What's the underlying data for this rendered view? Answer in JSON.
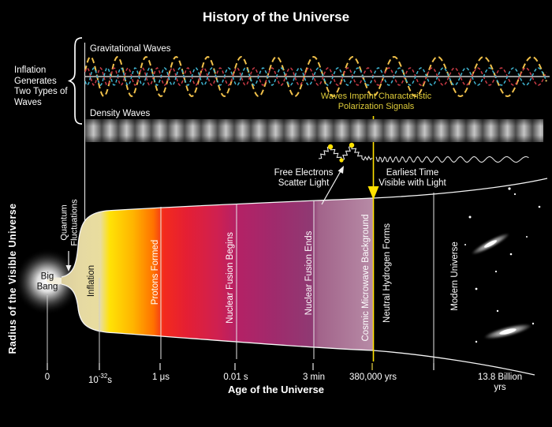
{
  "title": "History of the Universe",
  "wave_panel": {
    "intro_note": "Inflation\nGenerates\nTwo Types of\nWaves",
    "gravitational_label": "Gravitational Waves",
    "density_label": "Density Waves",
    "polarization_note": "Waves Imprint Characteristic\nPolarization Signals"
  },
  "annotations": {
    "free_electrons": "Free Electrons\nScatter Light",
    "earliest_time": "Earliest Time\nVisible with Light",
    "quantum_fluctuations": "Quantum\nFluctuations",
    "big_bang": "Big\nBang"
  },
  "y_axis_label": "Radius of the Visible Universe",
  "cone_labels": [
    "Inflation",
    "Protons Formed",
    "Nuclear Fusion Begins",
    "Nuclear Fusion Ends",
    "Cosmic Microwave Background",
    "Neutral Hydrogen Forms",
    "Modern Universe"
  ],
  "x_axis": {
    "label": "Age of the Universe",
    "ticks": [
      {
        "label": "0"
      },
      {
        "base": "10",
        "exp": "-32",
        "unit": "s"
      },
      {
        "label": "1 μs"
      },
      {
        "label": "0.01 s"
      },
      {
        "label": "3 min"
      },
      {
        "label": "380,000 yrs"
      },
      {
        "label": "13.8 Billion yrs"
      }
    ]
  },
  "colors": {
    "highlight_yellow": "#e0cd3a",
    "wave_gold": "#f0c04a",
    "wave_red": "#c93a45",
    "wave_cyan": "#3fb3cf",
    "cone_yellow": "#ffe206",
    "cone_red": "#e51f33",
    "cone_magenta": "#b52165",
    "cone_mauve": "#b78ba6"
  }
}
